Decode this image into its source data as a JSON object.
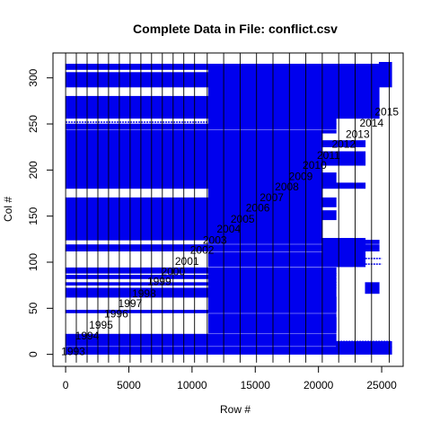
{
  "chart_data": {
    "type": "scatter",
    "title": "Complete Data in File: conflict.csv",
    "xlabel": "Row #",
    "ylabel": "Col #",
    "xlim": [
      -1000,
      26700
    ],
    "ylim": [
      -13,
      327
    ],
    "xticks": [
      0,
      5000,
      10000,
      15000,
      20000,
      25000
    ],
    "yticks": [
      0,
      50,
      100,
      150,
      200,
      250,
      300
    ],
    "point_color": "#0000ee",
    "row_boundaries": [
      0,
      850,
      1700,
      2550,
      3400,
      4250,
      5100,
      5950,
      6800,
      7650,
      8500,
      9350,
      10200,
      11200,
      12500,
      13800,
      15100,
      16400,
      17700,
      19000,
      20300,
      21600,
      22900,
      24200,
      25600
    ],
    "years": [
      {
        "label": "1993",
        "row": 600,
        "col": 3
      },
      {
        "label": "1994",
        "row": 1700,
        "col": 20
      },
      {
        "label": "1995",
        "row": 2800,
        "col": 32
      },
      {
        "label": "1996",
        "row": 4000,
        "col": 44
      },
      {
        "label": "1997",
        "row": 5100,
        "col": 55
      },
      {
        "label": "1998",
        "row": 6200,
        "col": 66
      },
      {
        "label": "1999",
        "row": 7400,
        "col": 79
      },
      {
        "label": "2000",
        "row": 8500,
        "col": 90
      },
      {
        "label": "2001",
        "row": 9600,
        "col": 101
      },
      {
        "label": "2002",
        "row": 10800,
        "col": 113
      },
      {
        "label": "2003",
        "row": 11800,
        "col": 124
      },
      {
        "label": "2004",
        "row": 12900,
        "col": 136
      },
      {
        "label": "2005",
        "row": 14000,
        "col": 147
      },
      {
        "label": "2006",
        "row": 15200,
        "col": 159
      },
      {
        "label": "2007",
        "row": 16300,
        "col": 170
      },
      {
        "label": "2008",
        "row": 17500,
        "col": 182
      },
      {
        "label": "2009",
        "row": 18600,
        "col": 193
      },
      {
        "label": "2010",
        "row": 19700,
        "col": 205
      },
      {
        "label": "2011",
        "row": 20800,
        "col": 216
      },
      {
        "label": "2012",
        "row": 22000,
        "col": 228
      },
      {
        "label": "2013",
        "row": 23100,
        "col": 239
      },
      {
        "label": "2014",
        "row": 24200,
        "col": 251
      },
      {
        "label": "2015",
        "row": 25400,
        "col": 263
      }
    ],
    "bands": [
      {
        "col_from": 0,
        "col_to": 8,
        "row_from": 0,
        "row_to": 25800
      },
      {
        "col_from": 9,
        "col_to": 22,
        "row_from": 0,
        "row_to": 11300
      },
      {
        "col_from": 9,
        "col_to": 22,
        "row_from": 11300,
        "row_to": 21400
      },
      {
        "col_from": 23,
        "col_to": 44,
        "row_from": 11300,
        "row_to": 21400
      },
      {
        "col_from": 45,
        "col_to": 48,
        "row_from": 0,
        "row_to": 21400
      },
      {
        "col_from": 48,
        "col_to": 62,
        "row_from": 11300,
        "row_to": 21400
      },
      {
        "col_from": 62,
        "col_to": 72,
        "row_from": 0,
        "row_to": 21400
      },
      {
        "col_from": 72,
        "col_to": 75,
        "row_from": 11300,
        "row_to": 21400
      },
      {
        "col_from": 75,
        "col_to": 78,
        "row_from": 0,
        "row_to": 21400
      },
      {
        "col_from": 78,
        "col_to": 82,
        "row_from": 11300,
        "row_to": 21400
      },
      {
        "col_from": 82,
        "col_to": 86,
        "row_from": 0,
        "row_to": 21400
      },
      {
        "col_from": 86,
        "col_to": 88,
        "row_from": 11300,
        "row_to": 21400
      },
      {
        "col_from": 88,
        "col_to": 94,
        "row_from": 0,
        "row_to": 21400
      },
      {
        "col_from": 95,
        "col_to": 111,
        "row_from": 11300,
        "row_to": 21400
      },
      {
        "col_from": 112,
        "col_to": 119,
        "row_from": 0,
        "row_to": 24800
      },
      {
        "col_from": 120,
        "col_to": 124,
        "row_from": 11300,
        "row_to": 24800
      },
      {
        "col_from": 124,
        "col_to": 170,
        "row_from": 0,
        "row_to": 20300
      },
      {
        "col_from": 146,
        "col_to": 156,
        "row_from": 20300,
        "row_to": 21400
      },
      {
        "col_from": 160,
        "col_to": 170,
        "row_from": 20300,
        "row_to": 21400
      },
      {
        "col_from": 170,
        "col_to": 180,
        "row_from": 11300,
        "row_to": 20300
      },
      {
        "col_from": 180,
        "col_to": 240,
        "row_from": 0,
        "row_to": 20300
      },
      {
        "col_from": 180,
        "col_to": 186,
        "row_from": 20300,
        "row_to": 23700
      },
      {
        "col_from": 186,
        "col_to": 197,
        "row_from": 20300,
        "row_to": 21400
      },
      {
        "col_from": 205,
        "col_to": 220,
        "row_from": 20300,
        "row_to": 23700
      },
      {
        "col_from": 225,
        "col_to": 232,
        "row_from": 20300,
        "row_to": 23700
      },
      {
        "col_from": 240,
        "col_to": 243,
        "row_from": 0,
        "row_to": 21400
      },
      {
        "col_from": 244,
        "col_to": 250,
        "row_from": 0,
        "row_to": 21400
      },
      {
        "col_from": 250,
        "col_to": 256,
        "row_from": 11300,
        "row_to": 21400
      },
      {
        "col_from": 256,
        "col_to": 280,
        "row_from": 0,
        "row_to": 21400
      },
      {
        "col_from": 280,
        "col_to": 290,
        "row_from": 11300,
        "row_to": 21400
      },
      {
        "col_from": 290,
        "col_to": 306,
        "row_from": 0,
        "row_to": 21400
      },
      {
        "col_from": 306,
        "col_to": 309,
        "row_from": 11300,
        "row_to": 21400
      },
      {
        "col_from": 309,
        "col_to": 315,
        "row_from": 0,
        "row_to": 21400
      },
      {
        "col_from": 256,
        "col_to": 315,
        "row_from": 21400,
        "row_to": 24800
      },
      {
        "col_from": 290,
        "col_to": 317,
        "row_from": 24800,
        "row_to": 25800
      },
      {
        "col_from": 8,
        "col_to": 14,
        "row_from": 21400,
        "row_to": 25800
      },
      {
        "col_from": 95,
        "col_to": 126,
        "row_from": 20300,
        "row_to": 23700
      },
      {
        "col_from": 47,
        "col_to": 62,
        "row_from": 20300,
        "row_to": 21400
      },
      {
        "col_from": 26,
        "col_to": 40,
        "row_from": 20300,
        "row_to": 21400
      },
      {
        "col_from": 66,
        "col_to": 78,
        "row_from": 23700,
        "row_to": 24800
      }
    ],
    "lines": [
      {
        "col": 296,
        "row_from": 0,
        "row_to": 21400
      },
      {
        "col": 302,
        "row_from": 0,
        "row_to": 21400
      },
      {
        "col": 310,
        "row_from": 0,
        "row_to": 25800
      },
      {
        "col": 252,
        "row_from": 0,
        "row_to": 21400
      },
      {
        "col": 14,
        "row_from": 11300,
        "row_to": 25800
      },
      {
        "col": 11,
        "row_from": 20300,
        "row_to": 25800
      },
      {
        "col": 98,
        "row_from": 23700,
        "row_to": 25000
      },
      {
        "col": 104,
        "row_from": 23700,
        "row_to": 25000
      }
    ]
  }
}
